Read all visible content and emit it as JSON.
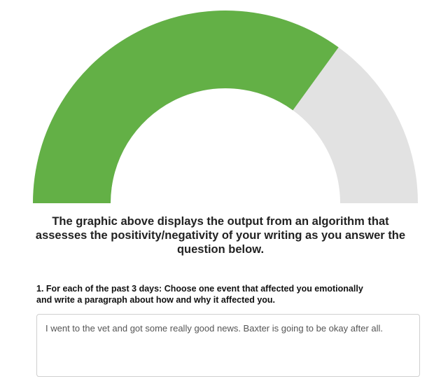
{
  "gauge": {
    "fill_fraction": 0.7,
    "fill_color": "#63b046",
    "track_color": "#e2e2e2"
  },
  "caption": {
    "line1": "The graphic above displays the output from an algorithm that",
    "line2": "assesses the positivity/negativity of your writing as you answer the",
    "line3": "question below."
  },
  "question": {
    "line1": "1. For each of the past 3 days: Choose one event that affected you emotionally",
    "line2": "and write a paragraph about how and why it affected you."
  },
  "answer": {
    "value": "I went to the vet and got some really good news. Baxter is going to be okay after all."
  }
}
